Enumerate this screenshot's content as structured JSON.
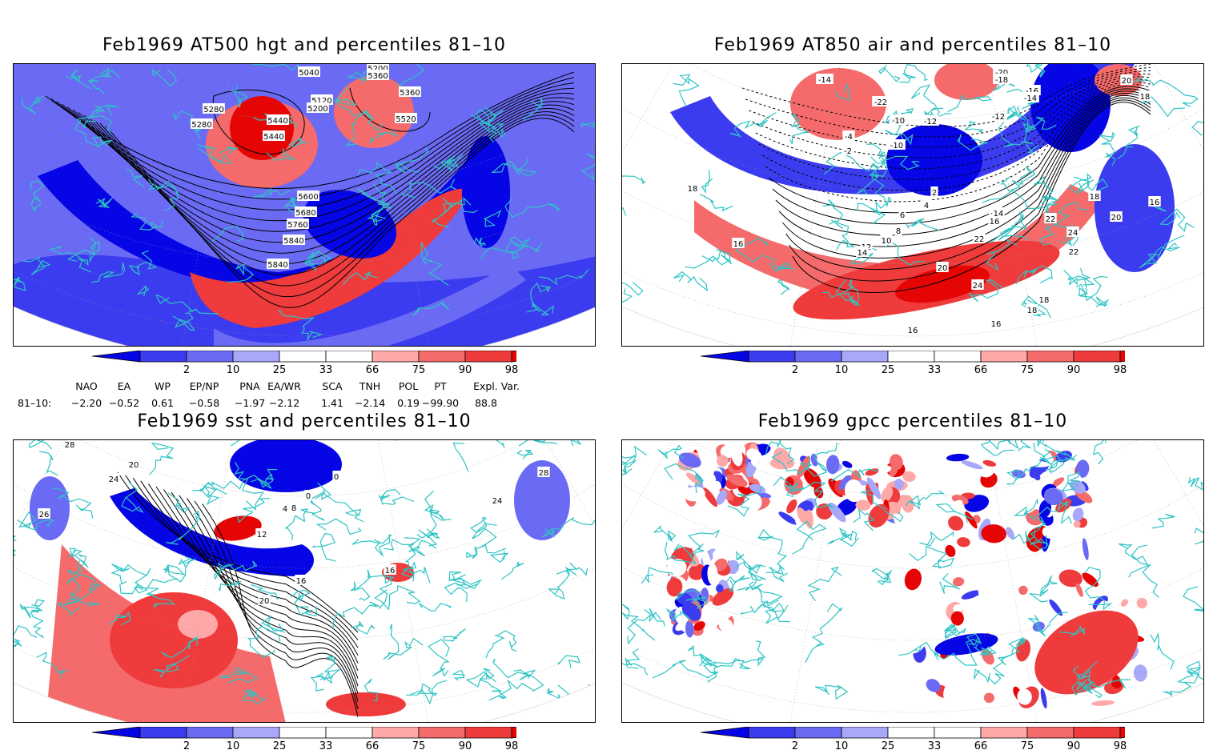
{
  "panels": [
    {
      "title": "Feb1969 AT500 hgt and percentiles 81–10",
      "contour_labels": [
        "5040",
        "5200",
        "5280",
        "5360",
        "5120",
        "5200",
        "5280",
        "5360",
        "5440",
        "5440",
        "5520",
        "5600",
        "5680",
        "5760",
        "5840",
        "5840"
      ]
    },
    {
      "title": "Feb1969 AT850 air and percentiles 81–10",
      "contour_labels": [
        "-14",
        "-20",
        "-18",
        "-16",
        "-14",
        "-12",
        "-10",
        "-22",
        "-12",
        "-10",
        "-4",
        "-2",
        "-2",
        "2",
        "4",
        "6",
        "8",
        "10",
        "12",
        "14",
        "16",
        "16",
        "18",
        "18",
        "16",
        "14",
        "16",
        "20",
        "22",
        "22",
        "24",
        "24",
        "22",
        "20",
        "18",
        "18",
        "16",
        "16",
        "20",
        "18"
      ]
    },
    {
      "title": "Feb1969 sst and percentiles 81–10",
      "contour_labels": [
        "28",
        "24",
        "26",
        "20",
        "0",
        "4",
        "8",
        "12",
        "16",
        "20",
        "16",
        "28",
        "24",
        "0"
      ]
    },
    {
      "title": "Feb1969 gpcc percentiles 81–10",
      "contour_labels": []
    }
  ],
  "colorbar": {
    "labels": [
      "2",
      "10",
      "25",
      "33",
      "66",
      "75",
      "90",
      "98"
    ],
    "colors": [
      "#0505e6",
      "#3b3bef",
      "#6a6af5",
      "#a8a8fa",
      "#ffffff",
      "#ffa8a8",
      "#f56a6a",
      "#ef3b3b",
      "#e60505"
    ]
  },
  "indices": {
    "headers": [
      "NAO",
      "EA",
      "WP",
      "EP/NP",
      "PNA",
      "EA/WR",
      "SCA",
      "TNH",
      "POL",
      "PT",
      "Expl. Var."
    ],
    "row_label": "81–10:",
    "values": [
      "−2.20",
      "−0.52",
      "0.61",
      "−0.58",
      "−1.97",
      "−2.12",
      "1.41",
      "−2.14",
      "0.19",
      "−99.90",
      "88.8"
    ]
  },
  "colors": {
    "coast": "#2ec4c4",
    "warm": "#ef3b3b",
    "cold": "#3b3bef",
    "contour": "#000000"
  }
}
